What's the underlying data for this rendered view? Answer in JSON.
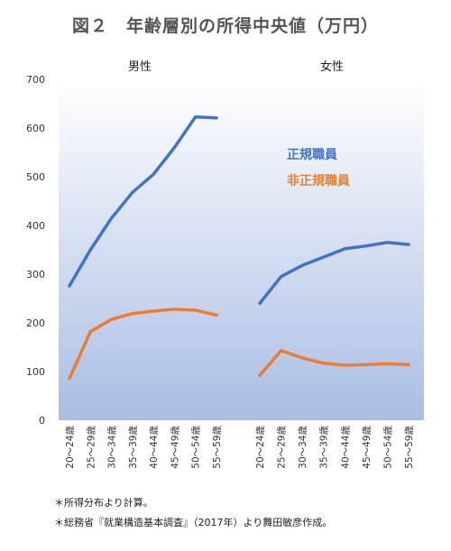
{
  "title": "図２　年齢層別の所得中央値（万円）",
  "notes": [
    "＊所得分布より計算。",
    "＊総務省『就業構造基本調査』（2017年）より舞田敏彦作成。"
  ],
  "colors": {
    "regular": "#4472c4",
    "nonregular": "#ed7d31",
    "bg_top": "#ffffff",
    "bg_bottom": "#a9bde3",
    "axis_text": "#333333"
  },
  "chart_data": {
    "type": "line",
    "title": "図２　年齢層別の所得中央値（万円）",
    "ylim": [
      0,
      700
    ],
    "yticks": [
      0,
      100,
      200,
      300,
      400,
      500,
      600,
      700
    ],
    "grid": false,
    "legend_position": "right-middle (text labels)",
    "panels": [
      {
        "label": "男性",
        "categories": [
          "20～24歳",
          "25～29歳",
          "30～34歳",
          "35～39歳",
          "40～44歳",
          "45～49歳",
          "50～54歳",
          "55～59歳"
        ],
        "series": [
          {
            "name": "正規職員",
            "values": [
              276,
              350,
              415,
              468,
              505,
              560,
              623,
              621
            ]
          },
          {
            "name": "非正規職員",
            "values": [
              86,
              182,
              207,
              219,
              224,
              228,
              226,
              216
            ]
          }
        ]
      },
      {
        "label": "女性",
        "categories": [
          "20～24歳",
          "25～29歳",
          "30～34歳",
          "35～39歳",
          "40～44歳",
          "45～49歳",
          "50～54歳",
          "55～59歳"
        ],
        "series": [
          {
            "name": "正規職員",
            "values": [
              240,
              295,
              318,
              335,
              352,
              358,
              365,
              361
            ]
          },
          {
            "name": "非正規職員",
            "values": [
              92,
              143,
              128,
              117,
              113,
              114,
              116,
              114
            ]
          }
        ]
      }
    ]
  }
}
